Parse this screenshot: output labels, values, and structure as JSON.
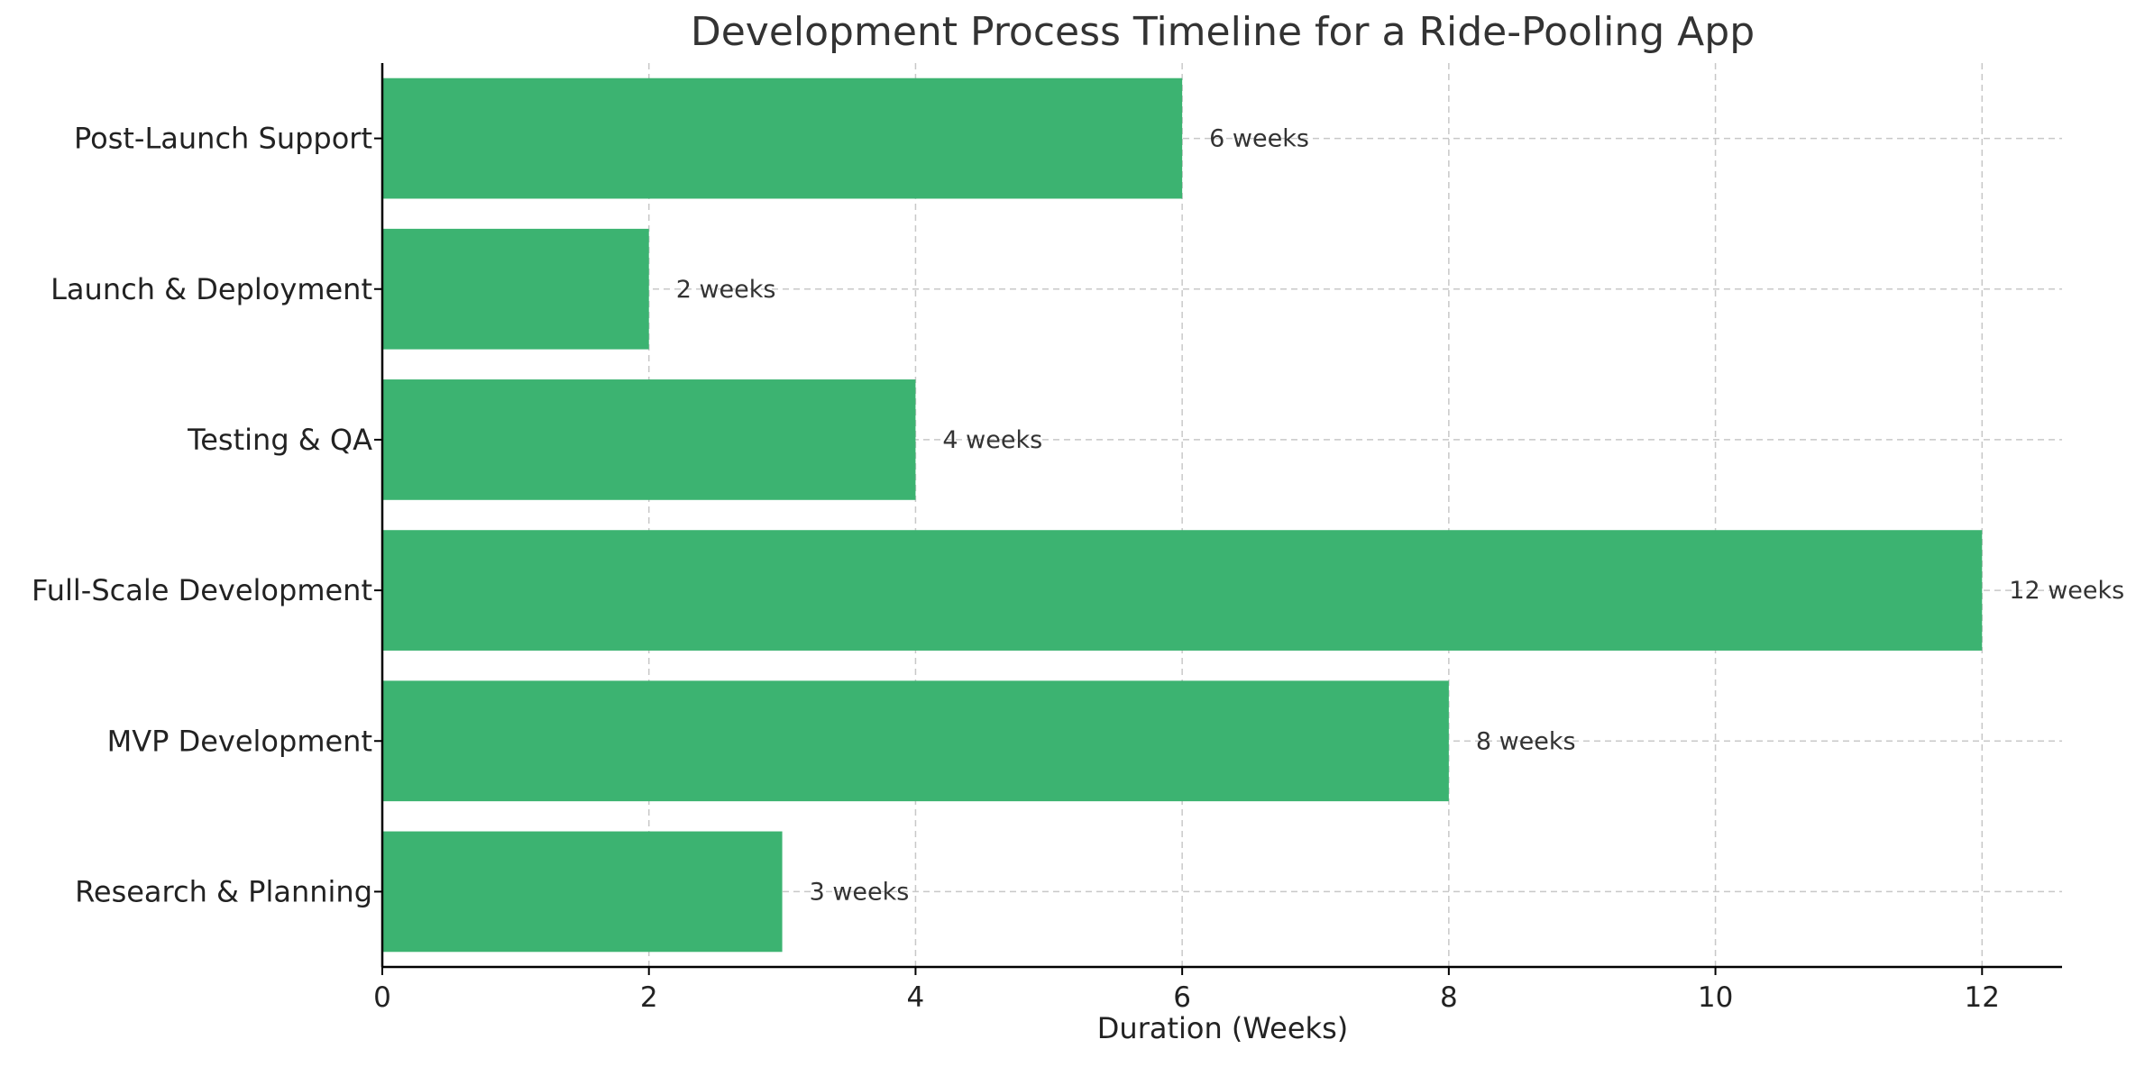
{
  "chart_data": {
    "type": "bar",
    "orientation": "horizontal",
    "title": "Development Process Timeline for a Ride-Pooling App",
    "xlabel": "Duration (Weeks)",
    "ylabel": "",
    "categories": [
      "Research & Planning",
      "MVP Development",
      "Full-Scale Development",
      "Testing & QA",
      "Launch & Deployment",
      "Post-Launch Support"
    ],
    "values": [
      3,
      8,
      12,
      4,
      2,
      6
    ],
    "data_labels": [
      "3 weeks",
      "8 weeks",
      "12 weeks",
      "4 weeks",
      "2 weeks",
      "6 weeks"
    ],
    "xlim": [
      0,
      12.6
    ],
    "xticks": [
      0,
      2,
      4,
      6,
      8,
      10,
      12
    ],
    "xtick_labels": [
      "0",
      "2",
      "4",
      "6",
      "8",
      "10",
      "12"
    ],
    "grid": true,
    "bar_color": "#3cb371",
    "grid_color": "#c8c8c8",
    "text_color": "#333333"
  }
}
